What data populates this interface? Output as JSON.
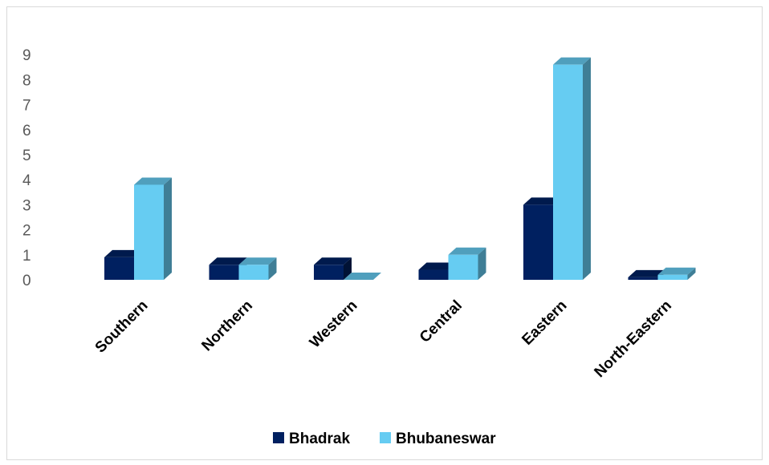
{
  "chart_data": {
    "type": "bar",
    "style": "3d-clustered-column",
    "categories": [
      "Southern",
      "Northern",
      "Western",
      "Central",
      "Eastern",
      "North-Eastern"
    ],
    "series": [
      {
        "name": "Bhadrak",
        "color": "#002060",
        "values": [
          0.9,
          0.6,
          0.6,
          0.4,
          3.0,
          0.1
        ]
      },
      {
        "name": "Bhubaneswar",
        "color": "#66CCF2",
        "values": [
          3.8,
          0.6,
          0.0,
          1.0,
          8.6,
          0.2
        ]
      }
    ],
    "yticks": [
      "0",
      "1",
      "2",
      "3",
      "4",
      "5",
      "6",
      "7",
      "8",
      "9"
    ],
    "ylim": [
      0,
      9
    ],
    "grid": false,
    "legend_position": "bottom",
    "xlabel_rotation": "-45deg"
  }
}
